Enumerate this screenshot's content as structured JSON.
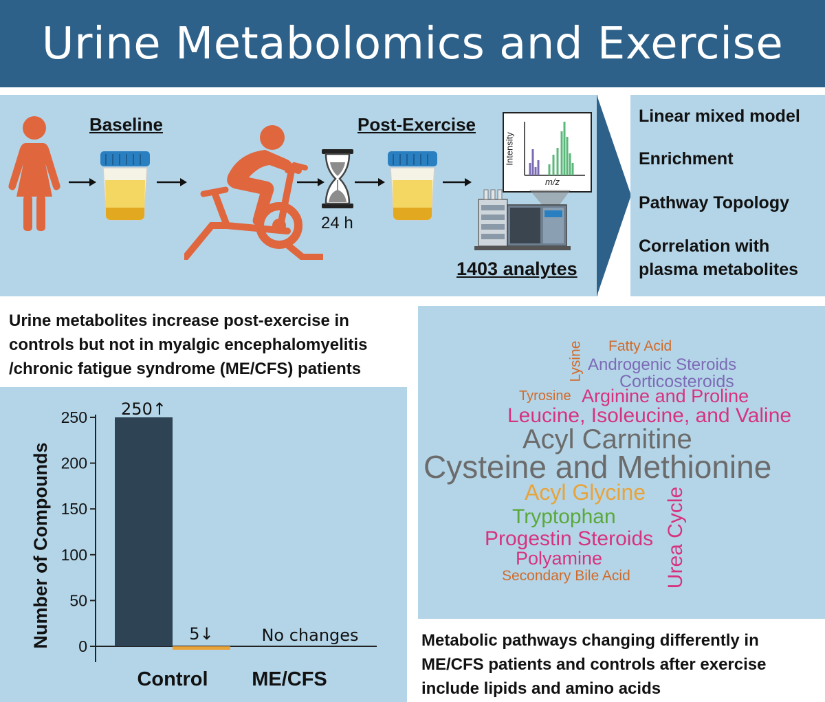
{
  "header": {
    "title": "Urine Metabolomics and Exercise"
  },
  "workflow": {
    "baseline_label": "Baseline",
    "post_label": "Post-Exercise",
    "wait_label": "24 h",
    "analytes_label": "1403 analytes",
    "spectrum": {
      "ylabel": "Intensity",
      "xlabel": "m/z"
    }
  },
  "methods": {
    "items": [
      "Linear mixed model",
      "Enrichment",
      "Pathway Topology",
      "Correlation with",
      "plasma metabolites"
    ]
  },
  "finding_left": {
    "lines": [
      "Urine metabolites increase post-exercise in",
      "controls but not in myalgic encephalomyelitis",
      "/chronic fatigue syndrome (ME/CFS) patients"
    ]
  },
  "finding_right": {
    "lines": [
      "Metabolic pathways changing differently in",
      "ME/CFS patients and controls after exercise",
      "include lipids and amino acids"
    ]
  },
  "chart_data": {
    "type": "bar",
    "ylabel": "Number of Compounds",
    "xlabel": "",
    "ylim": [
      0,
      250
    ],
    "yticks": [
      0,
      50,
      100,
      150,
      200,
      250
    ],
    "categories": [
      "Control",
      "ME/CFS"
    ],
    "series": [
      {
        "values": [
          250,
          0
        ],
        "color": "#2e4454",
        "bar_labels": [
          "250↑",
          "No changes"
        ]
      },
      {
        "values": [
          -5,
          0
        ],
        "color": "#e8a33a",
        "bar_labels": [
          "5↓",
          ""
        ]
      }
    ]
  },
  "word_cloud": {
    "words": [
      {
        "text": "Fatty Acid",
        "color": "#d06a2a"
      },
      {
        "text": "Lysine",
        "color": "#d06a2a"
      },
      {
        "text": "Androgenic Steroids",
        "color": "#7b6bb5"
      },
      {
        "text": "Corticosteroids",
        "color": "#7b6bb5"
      },
      {
        "text": "Tyrosine",
        "color": "#d06a2a"
      },
      {
        "text": "Arginine and Proline",
        "color": "#d6337f"
      },
      {
        "text": "Leucine, Isoleucine, and Valine",
        "color": "#d6337f"
      },
      {
        "text": "Acyl Carnitine",
        "color": "#6b6b6b"
      },
      {
        "text": "Cysteine and Methionine",
        "color": "#6b6b6b"
      },
      {
        "text": "Acyl Glycine",
        "color": "#e8a33a"
      },
      {
        "text": "Tryptophan",
        "color": "#5aa83a"
      },
      {
        "text": "Progestin Steroids",
        "color": "#d6337f"
      },
      {
        "text": "Polyamine",
        "color": "#d6337f"
      },
      {
        "text": "Secondary Bile Acid",
        "color": "#d06a2a"
      },
      {
        "text": "Urea Cycle",
        "color": "#d6337f"
      }
    ]
  },
  "colors": {
    "banner": "#2e6189",
    "panel": "#b4d5e8",
    "figure_orange": "#e0663e",
    "urine": "#f3d04a",
    "cap": "#2a7fc1"
  }
}
